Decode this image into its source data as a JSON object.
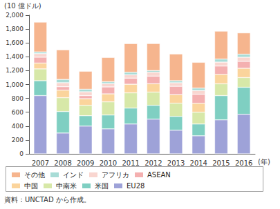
{
  "chart_data": {
    "type": "bar",
    "stacked": true,
    "grid": false,
    "legend": "bottom",
    "y_label": "(10 億ドル)",
    "x_label": "(年)",
    "source": "資料：UNCTAD から作成。",
    "categories": [
      "2007",
      "2008",
      "2009",
      "2010",
      "2011",
      "2012",
      "2013",
      "2014",
      "2015",
      "2016"
    ],
    "ylim": [
      0,
      2000
    ],
    "yticks": [
      0,
      200,
      400,
      600,
      800,
      {
        "value": 1000,
        "label": "1,000"
      },
      {
        "value": 1200,
        "label": "1,200"
      },
      {
        "value": 1400,
        "label": "1,400"
      },
      {
        "value": 1600,
        "label": "1,600"
      },
      {
        "value": 1800,
        "label": "1,800"
      },
      {
        "value": 2000,
        "label": "2,000"
      }
    ],
    "series": [
      {
        "name": "EU28",
        "color": "#9ea2d8",
        "values": [
          840,
          300,
          400,
          360,
          430,
          500,
          340,
          260,
          490,
          570
        ]
      },
      {
        "name": "米国",
        "color": "#7fcfc2",
        "values": [
          215,
          310,
          150,
          200,
          230,
          200,
          200,
          170,
          350,
          390
        ]
      },
      {
        "name": "中南米",
        "color": "#d7e8a8",
        "values": [
          170,
          200,
          150,
          190,
          220,
          190,
          190,
          170,
          170,
          140
        ]
      },
      {
        "name": "中国",
        "color": "#fbd49c",
        "values": [
          84,
          108,
          95,
          115,
          124,
          121,
          124,
          129,
          136,
          134
        ]
      },
      {
        "name": "ASEAN",
        "color": "#f4b0b0",
        "values": [
          85,
          50,
          45,
          100,
          88,
          110,
          120,
          130,
          120,
          100
        ]
      },
      {
        "name": "アフリカ",
        "color": "#f9d6d0",
        "values": [
          51,
          58,
          55,
          48,
          48,
          56,
          52,
          54,
          57,
          59
        ]
      },
      {
        "name": "インド",
        "color": "#a8dcd6",
        "values": [
          25,
          47,
          36,
          27,
          36,
          24,
          28,
          35,
          44,
          44
        ]
      },
      {
        "name": "その他",
        "color": "#f6b58e",
        "values": [
          430,
          427,
          260,
          350,
          414,
          390,
          386,
          372,
          403,
          308
        ]
      }
    ]
  }
}
